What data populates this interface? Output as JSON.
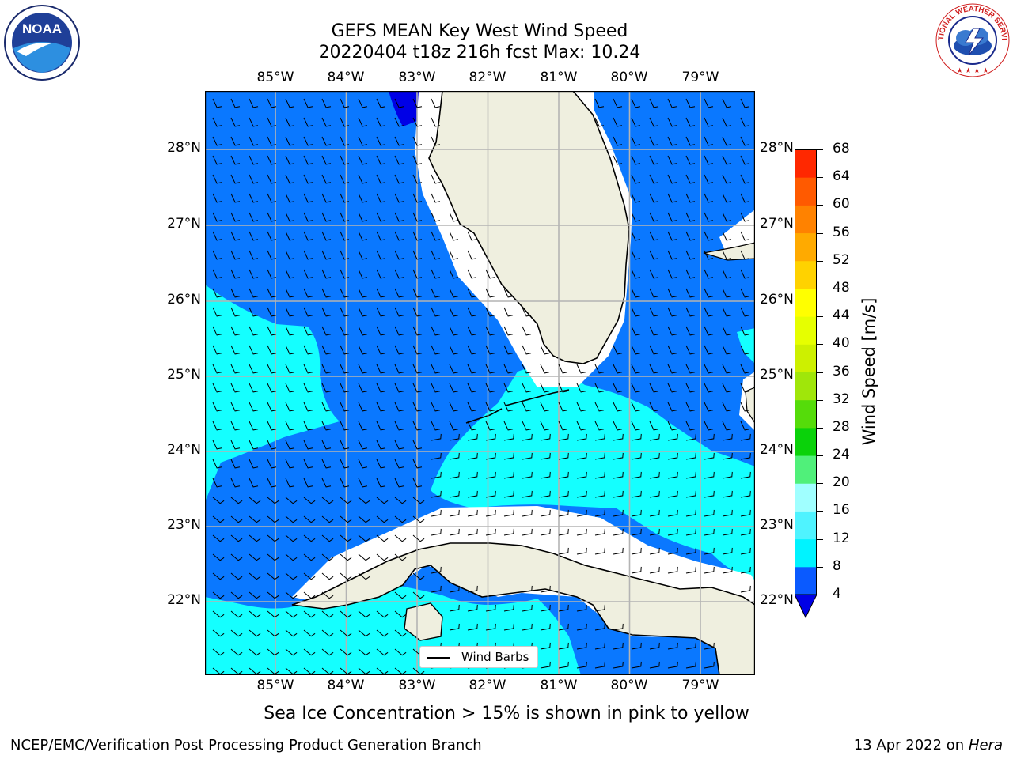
{
  "header": {
    "title_line1": "GEFS MEAN Key West Wind Speed",
    "title_line2": "20220404 t18z 216h fcst   Max: 10.24"
  },
  "logos": {
    "left": {
      "icon": "noaa-logo",
      "text": "NOAA",
      "ring_text": "NATIONAL OCEANIC AND ATMOSPHERIC ADMINISTRATION · U.S. DEPARTMENT OF COMMERCE"
    },
    "right": {
      "icon": "nws-logo",
      "ring_text": "NATIONAL WEATHER SERVICE"
    }
  },
  "axes": {
    "lon_labels": [
      "85°W",
      "84°W",
      "83°W",
      "82°W",
      "81°W",
      "80°W",
      "79°W"
    ],
    "lat_labels": [
      "28°N",
      "27°N",
      "26°N",
      "25°N",
      "24°N",
      "23°N",
      "22°N"
    ]
  },
  "legend": {
    "label": "Wind Barbs"
  },
  "colorbar": {
    "label": "Wind Speed [m/s]",
    "ticks": [
      "4",
      "8",
      "12",
      "16",
      "20",
      "24",
      "28",
      "32",
      "36",
      "40",
      "44",
      "48",
      "52",
      "56",
      "60",
      "64",
      "68"
    ],
    "colors": [
      "#0a5aff",
      "#00f3ff",
      "#4ff3ff",
      "#a0ffff",
      "#50f07a",
      "#0ad20a",
      "#55dc0a",
      "#a0e60a",
      "#cdf000",
      "#e6ff00",
      "#ffff00",
      "#ffd200",
      "#ffaa00",
      "#ff8200",
      "#ff5a00",
      "#ff2800"
    ],
    "extend_color": "#0000e6"
  },
  "map_colors": {
    "land": "#efefdf",
    "band_4_8": "#0a78ff",
    "band_8_12": "#14ffff",
    "below_4": "#0000e6",
    "grid": "#b4b4b4"
  },
  "note": "Sea Ice Concentration > 15% is shown in pink to yellow",
  "footer": {
    "left": "NCEP/EMC/Verification Post Processing Product Generation Branch",
    "right_prefix": "13 Apr 2022 on ",
    "right_machine": "Hera"
  }
}
